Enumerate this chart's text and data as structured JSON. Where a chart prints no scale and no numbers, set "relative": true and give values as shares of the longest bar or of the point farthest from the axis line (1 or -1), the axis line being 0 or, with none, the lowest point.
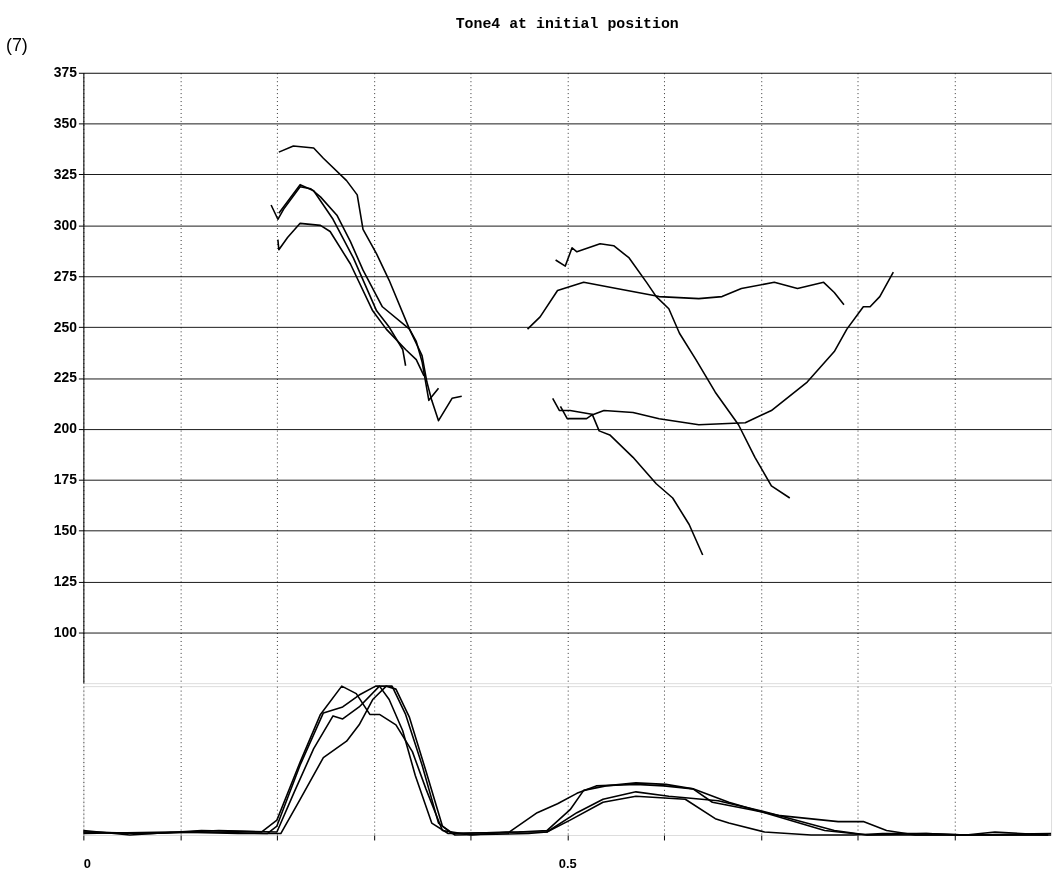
{
  "chart_data": [
    {
      "type": "line",
      "title": "Tone4 at initial position",
      "annotations": [
        "(7)"
      ],
      "xlim": [
        0,
        1
      ],
      "xticks": [
        {
          "value": 0,
          "label": null
        },
        {
          "value": 0.1,
          "label": null
        },
        {
          "value": 0.2,
          "label": null
        },
        {
          "value": 0.3,
          "label": null
        },
        {
          "value": 0.4,
          "label": null
        },
        {
          "value": 0.5,
          "label": null
        },
        {
          "value": 0.6,
          "label": null
        },
        {
          "value": 0.7,
          "label": null
        },
        {
          "value": 0.8,
          "label": null
        },
        {
          "value": 0.9,
          "label": null
        }
      ],
      "ylim": [
        75,
        375
      ],
      "yticks": [
        100,
        125,
        150,
        175,
        200,
        225,
        250,
        275,
        300,
        325,
        350,
        375
      ],
      "tick_labels": "y",
      "grid": true,
      "line_style": "solid",
      "marker": "none",
      "series": [
        {
          "color": "#000000",
          "x": [
            0.202,
            0.217,
            0.238,
            0.248,
            0.272,
            0.283,
            0.289,
            0.303,
            0.316,
            0.337,
            0.35,
            0.355,
            0.36,
            0.367,
            0.381,
            0.391
          ],
          "values": [
            336,
            339,
            338,
            333,
            322,
            315,
            298,
            286,
            273,
            249,
            236,
            223,
            214,
            204,
            215,
            216
          ]
        },
        {
          "color": "#000000",
          "x": [
            0.194,
            0.201,
            0.207,
            0.224,
            0.235,
            0.245,
            0.262,
            0.276,
            0.289,
            0.309,
            0.337,
            0.344,
            0.35,
            0.357,
            0.367
          ],
          "values": [
            310,
            303,
            308,
            319,
            318,
            314,
            305,
            292,
            278,
            260,
            249,
            243,
            233,
            214,
            220
          ]
        },
        {
          "color": "#000000",
          "x": [
            0.202,
            0.224,
            0.238,
            0.258,
            0.279,
            0.303,
            0.316,
            0.33,
            0.333
          ],
          "values": [
            306,
            320,
            317,
            303,
            284,
            258,
            250,
            239,
            231
          ]
        },
        {
          "color": "#000000",
          "x": [
            0.201,
            0.202,
            0.211,
            0.224,
            0.245,
            0.255,
            0.276,
            0.299,
            0.313,
            0.333,
            0.344,
            0.352
          ],
          "values": [
            293,
            288,
            294,
            301,
            300,
            297,
            281,
            258,
            249,
            239,
            234,
            226
          ]
        },
        {
          "color": "#000000",
          "x": [
            0.488,
            0.498,
            0.505,
            0.51,
            0.534,
            0.548,
            0.564,
            0.582,
            0.592,
            0.605,
            0.616,
            0.633,
            0.653,
            0.677,
            0.694,
            0.711,
            0.73
          ],
          "values": [
            283,
            280,
            289,
            287,
            291,
            290,
            284,
            272,
            265,
            259,
            247,
            234,
            218,
            202,
            186,
            172,
            166
          ]
        },
        {
          "color": "#000000",
          "x": [
            0.459,
            0.472,
            0.49,
            0.517,
            0.551,
            0.595,
            0.636,
            0.66,
            0.68,
            0.714,
            0.738,
            0.765,
            0.776,
            0.786
          ],
          "values": [
            249,
            255,
            268,
            272,
            269,
            265,
            264,
            265,
            269,
            272,
            269,
            272,
            267,
            261
          ]
        },
        {
          "color": "#000000",
          "x": [
            0.485,
            0.492,
            0.503,
            0.527,
            0.538,
            0.568,
            0.595,
            0.636,
            0.684,
            0.711,
            0.748,
            0.776,
            0.789,
            0.806,
            0.813,
            0.823,
            0.837
          ],
          "values": [
            215,
            209,
            209,
            207,
            209,
            208,
            205,
            202,
            203,
            209,
            223,
            238,
            249,
            260,
            260,
            265,
            277
          ]
        },
        {
          "color": "#000000",
          "x": [
            0.493,
            0.5,
            0.52,
            0.526,
            0.533,
            0.544,
            0.568,
            0.592,
            0.609,
            0.626,
            0.64
          ],
          "values": [
            211,
            205,
            205,
            207,
            199,
            197,
            186,
            173,
            166,
            153,
            138
          ]
        }
      ]
    },
    {
      "type": "line",
      "relative": true,
      "xlim": [
        0,
        1
      ],
      "xticks": [
        {
          "value": 0,
          "label": "0"
        },
        {
          "value": 0.1,
          "label": null
        },
        {
          "value": 0.2,
          "label": null
        },
        {
          "value": 0.3,
          "label": null
        },
        {
          "value": 0.4,
          "label": null
        },
        {
          "value": 0.5,
          "label": "0.5"
        },
        {
          "value": 0.6,
          "label": null
        },
        {
          "value": 0.7,
          "label": null
        },
        {
          "value": 0.8,
          "label": null
        },
        {
          "value": 0.9,
          "label": null
        }
      ],
      "tick_labels": "x",
      "grid": "x",
      "line_style": "solid",
      "marker": "none",
      "series": [
        {
          "color": "#000000",
          "x": [
            0,
            0.048,
            0.122,
            0.184,
            0.2,
            0.224,
            0.245,
            0.267,
            0.282,
            0.296,
            0.306,
            0.323,
            0.34,
            0.354,
            0.371,
            0.401,
            0.44,
            0.469,
            0.49,
            0.51,
            0.53,
            0.571,
            0.6,
            0.63,
            0.65,
            0.69,
            0.72,
            0.78,
            0.806,
            0.83,
            0.86,
            0.95,
            1.0
          ],
          "values": [
            0.03,
            0,
            0.03,
            0.02,
            0.1,
            0.49,
            0.81,
            1,
            0.95,
            0.81,
            0.81,
            0.74,
            0.56,
            0.31,
            0.03,
            0,
            0.02,
            0.15,
            0.21,
            0.28,
            0.33,
            0.34,
            0.33,
            0.31,
            0.22,
            0.17,
            0.13,
            0.09,
            0.09,
            0.03,
            0,
            0,
            0
          ]
        },
        {
          "color": "#000000",
          "x": [
            0,
            0.06,
            0.13,
            0.19,
            0.2,
            0.224,
            0.248,
            0.268,
            0.285,
            0.302,
            0.306,
            0.316,
            0.33,
            0.343,
            0.36,
            0.377,
            0.45,
            0.479,
            0.503,
            0.517,
            0.54,
            0.571,
            0.602,
            0.63,
            0.667,
            0.704,
            0.766,
            0.81,
            0.871,
            0.912,
            0.942,
            0.997
          ],
          "values": [
            0.02,
            0.01,
            0.02,
            0.01,
            0.06,
            0.47,
            0.82,
            0.86,
            0.94,
            1,
            1,
            0.91,
            0.7,
            0.4,
            0.08,
            0.01,
            0.02,
            0.03,
            0.17,
            0.3,
            0.33,
            0.35,
            0.34,
            0.31,
            0.22,
            0.15,
            0.03,
            0,
            0.01,
            0,
            0.02,
            0
          ]
        },
        {
          "color": "#000000",
          "x": [
            0,
            0.07,
            0.14,
            0.2,
            0.218,
            0.238,
            0.258,
            0.268,
            0.285,
            0.306,
            0.319,
            0.333,
            0.35,
            0.367,
            0.381,
            0.45,
            0.479,
            0.51,
            0.537,
            0.571,
            0.605,
            0.656,
            0.708,
            0.776,
            0.81,
            0.912,
            1.0
          ],
          "values": [
            0.02,
            0.01,
            0.03,
            0.02,
            0.29,
            0.58,
            0.8,
            0.78,
            0.86,
            1,
            1,
            0.81,
            0.47,
            0.08,
            0.01,
            0.02,
            0.02,
            0.15,
            0.24,
            0.29,
            0.26,
            0.23,
            0.15,
            0.03,
            0,
            0,
            0.01
          ]
        },
        {
          "color": "#000000",
          "x": [
            0,
            0.09,
            0.16,
            0.204,
            0.224,
            0.248,
            0.272,
            0.285,
            0.299,
            0.313,
            0.323,
            0.337,
            0.354,
            0.371,
            0.384,
            0.46,
            0.479,
            0.503,
            0.537,
            0.571,
            0.622,
            0.653,
            0.667,
            0.704,
            0.752,
            0.796,
            0.826,
            0.871,
            0.912,
            0.997
          ],
          "values": [
            0.01,
            0.02,
            0.01,
            0.01,
            0.24,
            0.52,
            0.63,
            0.74,
            0.91,
            1,
            0.98,
            0.79,
            0.43,
            0.06,
            0,
            0.01,
            0.02,
            0.1,
            0.22,
            0.26,
            0.24,
            0.11,
            0.08,
            0.02,
            0,
            0,
            0.01,
            0.01,
            0,
            0
          ]
        }
      ]
    }
  ]
}
